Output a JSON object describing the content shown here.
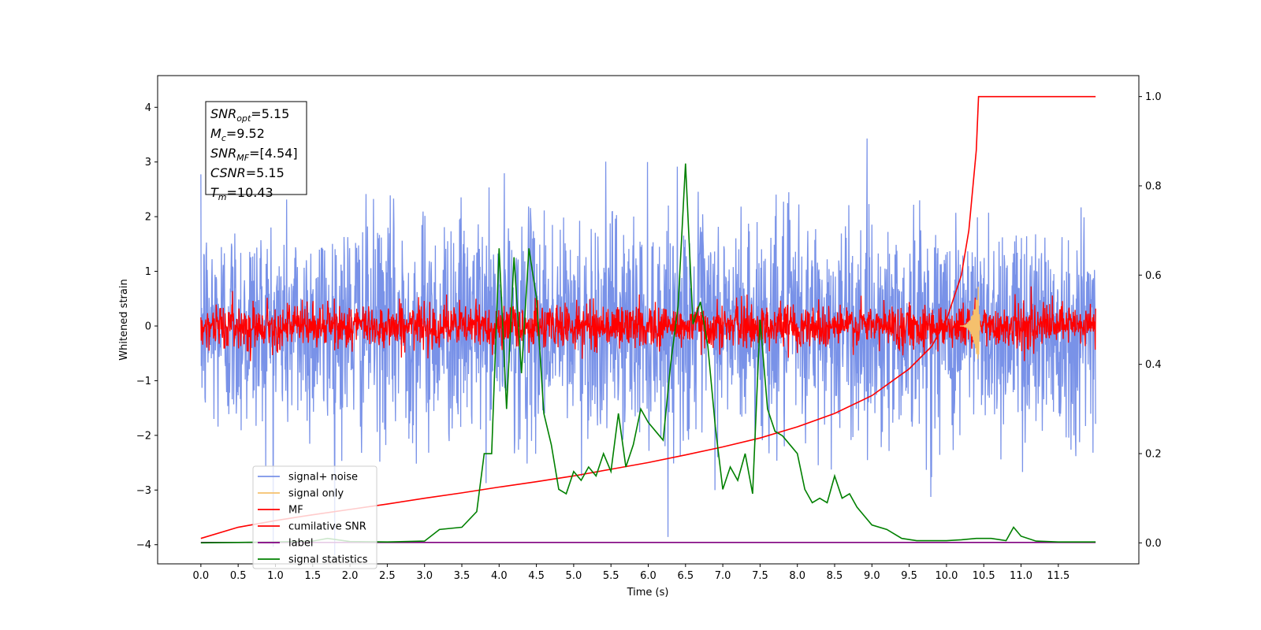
{
  "chart_data": {
    "type": "line",
    "xlabel": "Time (s)",
    "ylabel": "Whitened strain",
    "xlim": [
      -0.58,
      12.58
    ],
    "ylim_left": [
      -4.35,
      4.58
    ],
    "ylim_right": [
      -0.047,
      1.047
    ],
    "x_ticks": [
      "0.0",
      "0.5",
      "1.0",
      "1.5",
      "2.0",
      "2.5",
      "3.0",
      "3.5",
      "4.0",
      "4.5",
      "5.0",
      "5.5",
      "6.0",
      "6.5",
      "7.0",
      "7.5",
      "8.0",
      "8.5",
      "9.0",
      "9.5",
      "10.0",
      "10.5",
      "11.0",
      "11.5"
    ],
    "y_ticks_left": [
      "4",
      "3",
      "2",
      "1",
      "0",
      "−1",
      "−2",
      "−3",
      "−4"
    ],
    "y_ticks_right": [
      "1.0",
      "0.8",
      "0.6",
      "0.4",
      "0.2",
      "0.0"
    ],
    "grid": false,
    "legend_position": "lower-left",
    "annotation": [
      {
        "prefix": "SNR",
        "sub": "opt",
        "value": "=5.15"
      },
      {
        "prefix": "M",
        "sub": "c",
        "value": "=9.52"
      },
      {
        "prefix": "SNR",
        "sub": "MF",
        "value": "=[4.54]"
      },
      {
        "prefix": "CSNR",
        "sub": "",
        "value": "=5.15"
      },
      {
        "prefix": "T",
        "sub": "m",
        "value": "=10.43"
      }
    ],
    "series": [
      {
        "name": "signal+ noise",
        "color": "#7992e8",
        "axis": "left",
        "kind": "noise",
        "sigma": 1.0,
        "x_range": [
          0.0,
          12.0
        ]
      },
      {
        "name": "signal only",
        "color": "#f5c06d",
        "axis": "left",
        "kind": "chirp",
        "merger_time": 10.43,
        "peak": 0.95
      },
      {
        "name": "MF",
        "color": "#ff0000",
        "axis": "left",
        "kind": "noise",
        "sigma": 0.2,
        "x_range": [
          0.0,
          12.0
        ]
      },
      {
        "name": "cumilative SNR",
        "color": "#ff0000",
        "axis": "right",
        "x": [
          0.0,
          0.5,
          1.0,
          1.5,
          2.0,
          2.5,
          3.0,
          3.5,
          4.0,
          4.5,
          5.0,
          5.5,
          6.0,
          6.5,
          7.0,
          7.5,
          8.0,
          8.5,
          9.0,
          9.5,
          9.8,
          10.0,
          10.2,
          10.3,
          10.4,
          10.43,
          10.5,
          11.0,
          11.5,
          12.0
        ],
        "y": [
          0.01,
          0.035,
          0.05,
          0.063,
          0.075,
          0.087,
          0.1,
          0.112,
          0.125,
          0.137,
          0.15,
          0.165,
          0.18,
          0.197,
          0.215,
          0.235,
          0.26,
          0.29,
          0.33,
          0.39,
          0.44,
          0.5,
          0.6,
          0.7,
          0.88,
          1.0,
          1.0,
          1.0,
          1.0,
          1.0
        ]
      },
      {
        "name": "label",
        "color": "#800080",
        "axis": "right",
        "x": [
          0.0,
          12.0
        ],
        "y": [
          0.001,
          0.001
        ]
      },
      {
        "name": "signal statistics",
        "color": "#008000",
        "axis": "right",
        "x": [
          0.0,
          0.5,
          1.0,
          1.5,
          1.7,
          2.0,
          2.5,
          3.0,
          3.2,
          3.5,
          3.7,
          3.8,
          3.9,
          4.0,
          4.1,
          4.2,
          4.3,
          4.4,
          4.5,
          4.6,
          4.7,
          4.8,
          4.9,
          5.0,
          5.1,
          5.2,
          5.3,
          5.4,
          5.5,
          5.6,
          5.7,
          5.8,
          5.9,
          6.0,
          6.1,
          6.2,
          6.3,
          6.4,
          6.5,
          6.6,
          6.7,
          6.8,
          6.9,
          7.0,
          7.1,
          7.2,
          7.3,
          7.4,
          7.5,
          7.6,
          7.7,
          7.8,
          7.9,
          8.0,
          8.1,
          8.2,
          8.3,
          8.4,
          8.5,
          8.6,
          8.7,
          8.8,
          8.9,
          9.0,
          9.2,
          9.4,
          9.6,
          10.0,
          10.2,
          10.4,
          10.6,
          10.8,
          10.9,
          11.0,
          11.2,
          11.5,
          12.0
        ],
        "y": [
          0.0,
          0.001,
          0.002,
          0.004,
          0.01,
          0.003,
          0.002,
          0.004,
          0.03,
          0.035,
          0.07,
          0.2,
          0.2,
          0.66,
          0.3,
          0.64,
          0.38,
          0.66,
          0.55,
          0.29,
          0.22,
          0.12,
          0.11,
          0.16,
          0.14,
          0.17,
          0.15,
          0.2,
          0.16,
          0.29,
          0.17,
          0.22,
          0.3,
          0.27,
          0.25,
          0.23,
          0.4,
          0.53,
          0.85,
          0.49,
          0.54,
          0.44,
          0.26,
          0.12,
          0.17,
          0.14,
          0.2,
          0.11,
          0.5,
          0.3,
          0.25,
          0.24,
          0.22,
          0.2,
          0.12,
          0.09,
          0.1,
          0.09,
          0.15,
          0.1,
          0.11,
          0.08,
          0.06,
          0.04,
          0.03,
          0.01,
          0.005,
          0.005,
          0.007,
          0.01,
          0.01,
          0.005,
          0.035,
          0.015,
          0.004,
          0.002,
          0.002
        ]
      }
    ]
  }
}
